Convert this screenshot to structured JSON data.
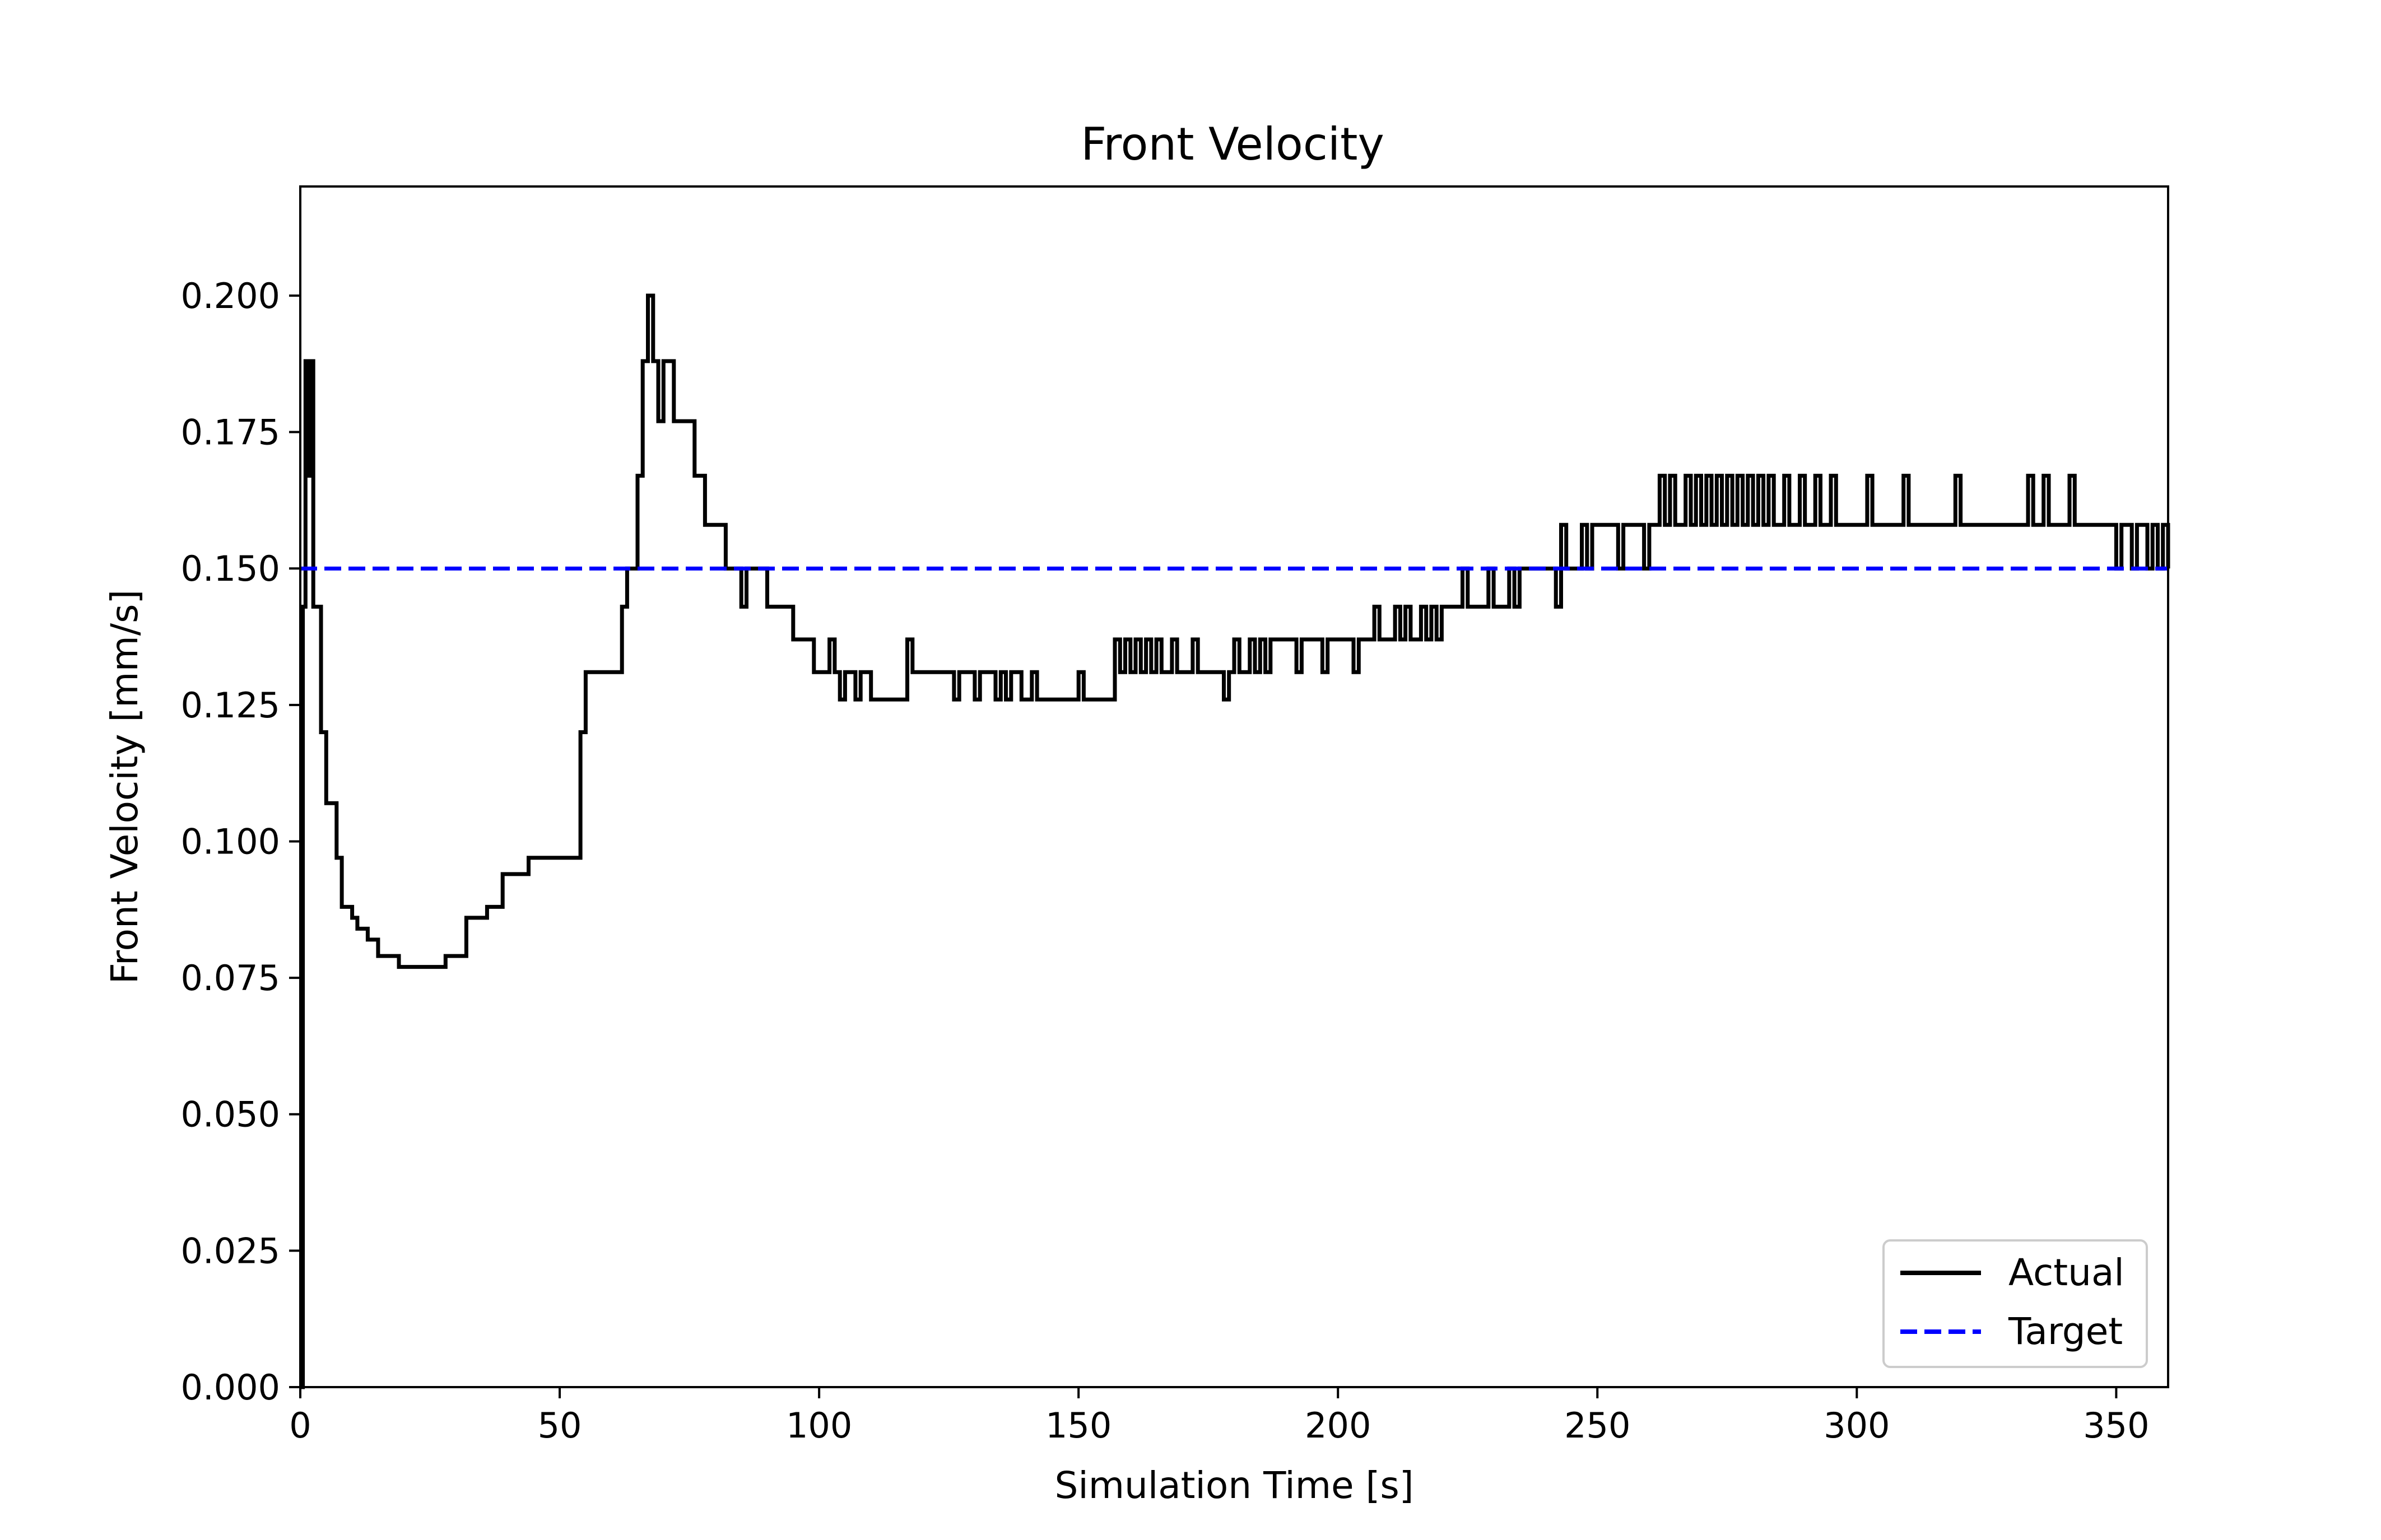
{
  "chart_data": {
    "type": "line",
    "title": "Front Velocity",
    "xlabel": "Simulation Time [s]",
    "ylabel": "Front Velocity [mm/s]",
    "xlim": [
      0,
      360
    ],
    "ylim": [
      0,
      0.22
    ],
    "x_ticks": [
      "0",
      "50",
      "100",
      "150",
      "200",
      "250",
      "300",
      "350"
    ],
    "y_ticks": [
      "0.000",
      "0.025",
      "0.050",
      "0.075",
      "0.100",
      "0.125",
      "0.150",
      "0.175",
      "0.200"
    ],
    "grid": false,
    "legend": "lower-right",
    "series": [
      {
        "name": "Actual",
        "color": "#000000",
        "style": "solid",
        "step": true,
        "points": [
          [
            0,
            0
          ],
          [
            0.5,
            0.143
          ],
          [
            1,
            0.188
          ],
          [
            1.5,
            0.167
          ],
          [
            2,
            0.188
          ],
          [
            2.5,
            0.143
          ],
          [
            4,
            0.12
          ],
          [
            5,
            0.107
          ],
          [
            7,
            0.097
          ],
          [
            8,
            0.088
          ],
          [
            10,
            0.086
          ],
          [
            11,
            0.084
          ],
          [
            13,
            0.082
          ],
          [
            15,
            0.079
          ],
          [
            19,
            0.077
          ],
          [
            28,
            0.079
          ],
          [
            32,
            0.086
          ],
          [
            36,
            0.088
          ],
          [
            39,
            0.094
          ],
          [
            44,
            0.097
          ],
          [
            54,
            0.12
          ],
          [
            55,
            0.131
          ],
          [
            62,
            0.143
          ],
          [
            63,
            0.15
          ],
          [
            65,
            0.167
          ],
          [
            66,
            0.188
          ],
          [
            67,
            0.2
          ],
          [
            68,
            0.188
          ],
          [
            69,
            0.177
          ],
          [
            70,
            0.188
          ],
          [
            72,
            0.177
          ],
          [
            76,
            0.167
          ],
          [
            78,
            0.158
          ],
          [
            82,
            0.15
          ],
          [
            85,
            0.143
          ],
          [
            86,
            0.15
          ],
          [
            90,
            0.143
          ],
          [
            95,
            0.137
          ],
          [
            99,
            0.131
          ],
          [
            102,
            0.137
          ],
          [
            103,
            0.131
          ],
          [
            104,
            0.126
          ],
          [
            105,
            0.131
          ],
          [
            107,
            0.126
          ],
          [
            108,
            0.131
          ],
          [
            110,
            0.126
          ],
          [
            117,
            0.137
          ],
          [
            118,
            0.131
          ],
          [
            126,
            0.126
          ],
          [
            127,
            0.131
          ],
          [
            130,
            0.126
          ],
          [
            131,
            0.131
          ],
          [
            134,
            0.126
          ],
          [
            135,
            0.131
          ],
          [
            136,
            0.126
          ],
          [
            137,
            0.131
          ],
          [
            139,
            0.126
          ],
          [
            141,
            0.131
          ],
          [
            142,
            0.126
          ],
          [
            150,
            0.131
          ],
          [
            151,
            0.126
          ],
          [
            157,
            0.137
          ],
          [
            158,
            0.131
          ],
          [
            159,
            0.137
          ],
          [
            160,
            0.131
          ],
          [
            161,
            0.137
          ],
          [
            162,
            0.131
          ],
          [
            163,
            0.137
          ],
          [
            164,
            0.131
          ],
          [
            165,
            0.137
          ],
          [
            166,
            0.131
          ],
          [
            168,
            0.137
          ],
          [
            169,
            0.131
          ],
          [
            172,
            0.137
          ],
          [
            173,
            0.131
          ],
          [
            178,
            0.126
          ],
          [
            179,
            0.131
          ],
          [
            180,
            0.137
          ],
          [
            181,
            0.131
          ],
          [
            183,
            0.137
          ],
          [
            184,
            0.131
          ],
          [
            185,
            0.137
          ],
          [
            186,
            0.131
          ],
          [
            187,
            0.137
          ],
          [
            192,
            0.131
          ],
          [
            193,
            0.137
          ],
          [
            197,
            0.131
          ],
          [
            198,
            0.137
          ],
          [
            203,
            0.131
          ],
          [
            204,
            0.137
          ],
          [
            207,
            0.143
          ],
          [
            208,
            0.137
          ],
          [
            211,
            0.143
          ],
          [
            212,
            0.137
          ],
          [
            213,
            0.143
          ],
          [
            214,
            0.137
          ],
          [
            216,
            0.143
          ],
          [
            217,
            0.137
          ],
          [
            218,
            0.143
          ],
          [
            219,
            0.137
          ],
          [
            220,
            0.143
          ],
          [
            224,
            0.15
          ],
          [
            225,
            0.143
          ],
          [
            229,
            0.15
          ],
          [
            230,
            0.143
          ],
          [
            233,
            0.15
          ],
          [
            234,
            0.143
          ],
          [
            235,
            0.15
          ],
          [
            242,
            0.143
          ],
          [
            243,
            0.158
          ],
          [
            244,
            0.15
          ],
          [
            247,
            0.158
          ],
          [
            248,
            0.15
          ],
          [
            249,
            0.158
          ],
          [
            254,
            0.15
          ],
          [
            255,
            0.158
          ],
          [
            259,
            0.15
          ],
          [
            260,
            0.158
          ],
          [
            262,
            0.167
          ],
          [
            263,
            0.158
          ],
          [
            264,
            0.167
          ],
          [
            265,
            0.158
          ],
          [
            267,
            0.167
          ],
          [
            268,
            0.158
          ],
          [
            269,
            0.167
          ],
          [
            270,
            0.158
          ],
          [
            271,
            0.167
          ],
          [
            272,
            0.158
          ],
          [
            273,
            0.167
          ],
          [
            274,
            0.158
          ],
          [
            275,
            0.167
          ],
          [
            276,
            0.158
          ],
          [
            277,
            0.167
          ],
          [
            278,
            0.158
          ],
          [
            279,
            0.167
          ],
          [
            280,
            0.158
          ],
          [
            281,
            0.167
          ],
          [
            282,
            0.158
          ],
          [
            283,
            0.167
          ],
          [
            284,
            0.158
          ],
          [
            286,
            0.167
          ],
          [
            287,
            0.158
          ],
          [
            289,
            0.167
          ],
          [
            290,
            0.158
          ],
          [
            292,
            0.167
          ],
          [
            293,
            0.158
          ],
          [
            295,
            0.167
          ],
          [
            296,
            0.158
          ],
          [
            302,
            0.167
          ],
          [
            303,
            0.158
          ],
          [
            309,
            0.167
          ],
          [
            310,
            0.158
          ],
          [
            319,
            0.167
          ],
          [
            320,
            0.158
          ],
          [
            333,
            0.167
          ],
          [
            334,
            0.158
          ],
          [
            336,
            0.167
          ],
          [
            337,
            0.158
          ],
          [
            341,
            0.167
          ],
          [
            342,
            0.158
          ],
          [
            350,
            0.15
          ],
          [
            351,
            0.158
          ],
          [
            353,
            0.15
          ],
          [
            354,
            0.158
          ],
          [
            356,
            0.15
          ],
          [
            357,
            0.158
          ],
          [
            358,
            0.15
          ],
          [
            359,
            0.158
          ],
          [
            360,
            0.15
          ]
        ]
      },
      {
        "name": "Target",
        "color": "#0000ff",
        "style": "dashed",
        "step": false,
        "points": [
          [
            0,
            0.15
          ],
          [
            360,
            0.15
          ]
        ]
      }
    ]
  }
}
